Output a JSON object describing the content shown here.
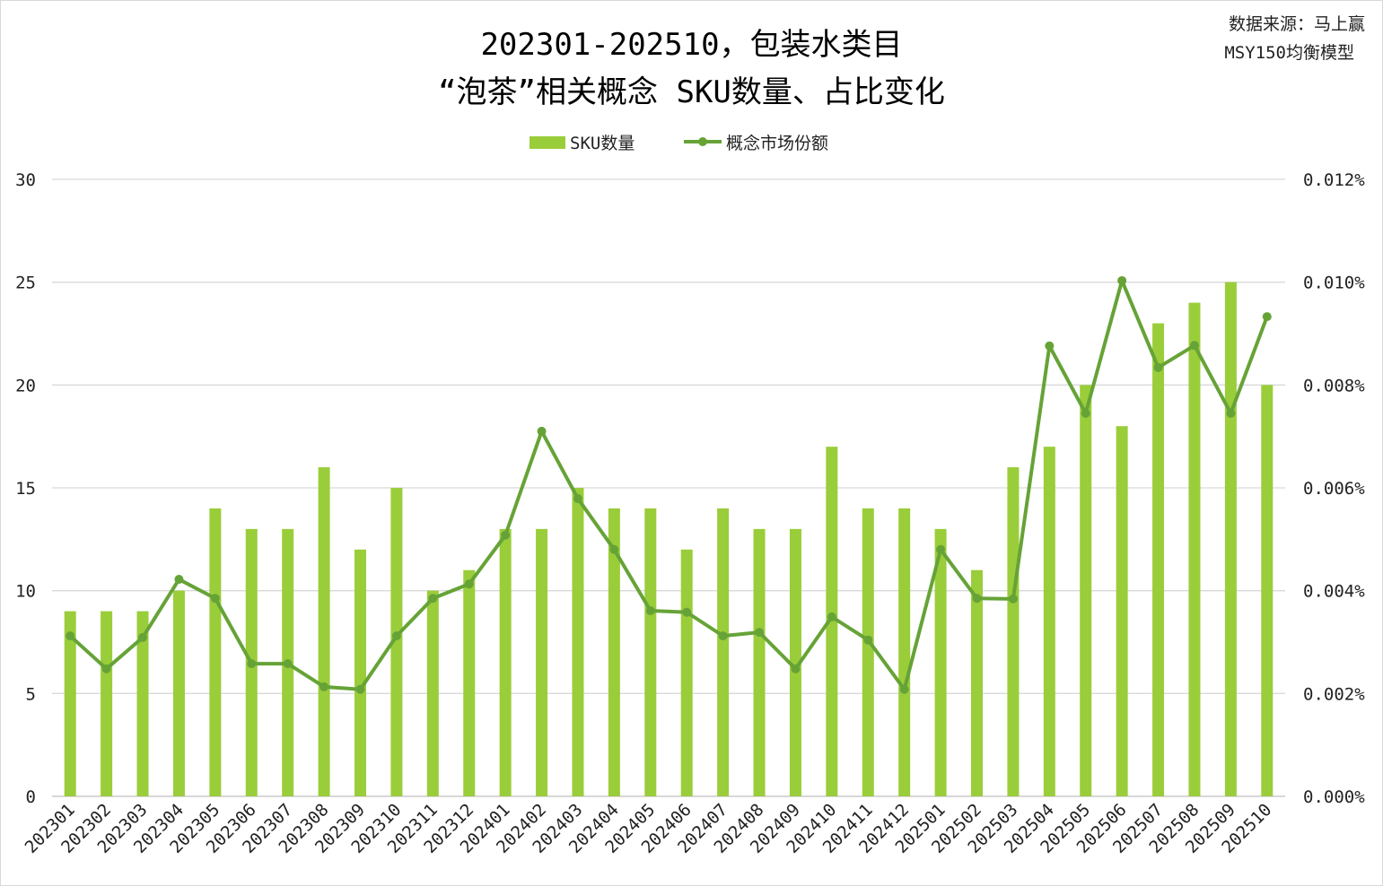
{
  "title_line1": "202301-202510，包装水类目",
  "title_line2": "“泡茶”相关概念 SKU数量、占比变化",
  "source_line1": "数据来源：马上赢",
  "source_line2": "MSY150均衡模型",
  "chart_data": {
    "type": "bar+line",
    "title": "202301-202510，包装水类目 “泡茶”相关概念 SKU数量、占比变化",
    "categories": [
      "202301",
      "202302",
      "202303",
      "202304",
      "202305",
      "202306",
      "202307",
      "202308",
      "202309",
      "202310",
      "202311",
      "202312",
      "202401",
      "202402",
      "202403",
      "202404",
      "202405",
      "202406",
      "202407",
      "202408",
      "202409",
      "202410",
      "202411",
      "202412",
      "202501",
      "202502",
      "202503",
      "202504",
      "202505",
      "202506",
      "202507",
      "202508",
      "202509",
      "202510"
    ],
    "series": [
      {
        "name": "SKU数量",
        "type": "bar",
        "axis": "left",
        "color": "#9acd3a",
        "values": [
          9,
          9,
          9,
          10,
          14,
          13,
          13,
          16,
          12,
          15,
          10,
          11,
          13,
          13,
          15,
          14,
          14,
          12,
          14,
          13,
          13,
          17,
          14,
          14,
          13,
          11,
          16,
          17,
          20,
          18,
          23,
          24,
          25,
          20
        ]
      },
      {
        "name": "概念市场份额",
        "type": "line",
        "axis": "right",
        "unit": "%",
        "color": "#66a337",
        "values": [
          0.00312,
          0.00248,
          0.00309,
          0.00422,
          0.00385,
          0.00258,
          0.00258,
          0.00213,
          0.00208,
          0.00312,
          0.00385,
          0.00413,
          0.00508,
          0.0071,
          0.00579,
          0.0048,
          0.00361,
          0.00358,
          0.00312,
          0.00319,
          0.00248,
          0.00349,
          0.00304,
          0.00208,
          0.0048,
          0.00385,
          0.00384,
          0.00876,
          0.00745,
          0.01003,
          0.00834,
          0.00877,
          0.00745,
          0.00933
        ]
      }
    ],
    "y_left": {
      "min": 0,
      "max": 30,
      "ticks": [
        "0",
        "5",
        "10",
        "15",
        "20",
        "25",
        "30"
      ]
    },
    "y_right": {
      "min": 0,
      "max": 0.012,
      "ticks": [
        "0.000%",
        "0.002%",
        "0.004%",
        "0.006%",
        "0.008%",
        "0.010%",
        "0.012%"
      ]
    },
    "grid": true,
    "legend": "top-center"
  }
}
